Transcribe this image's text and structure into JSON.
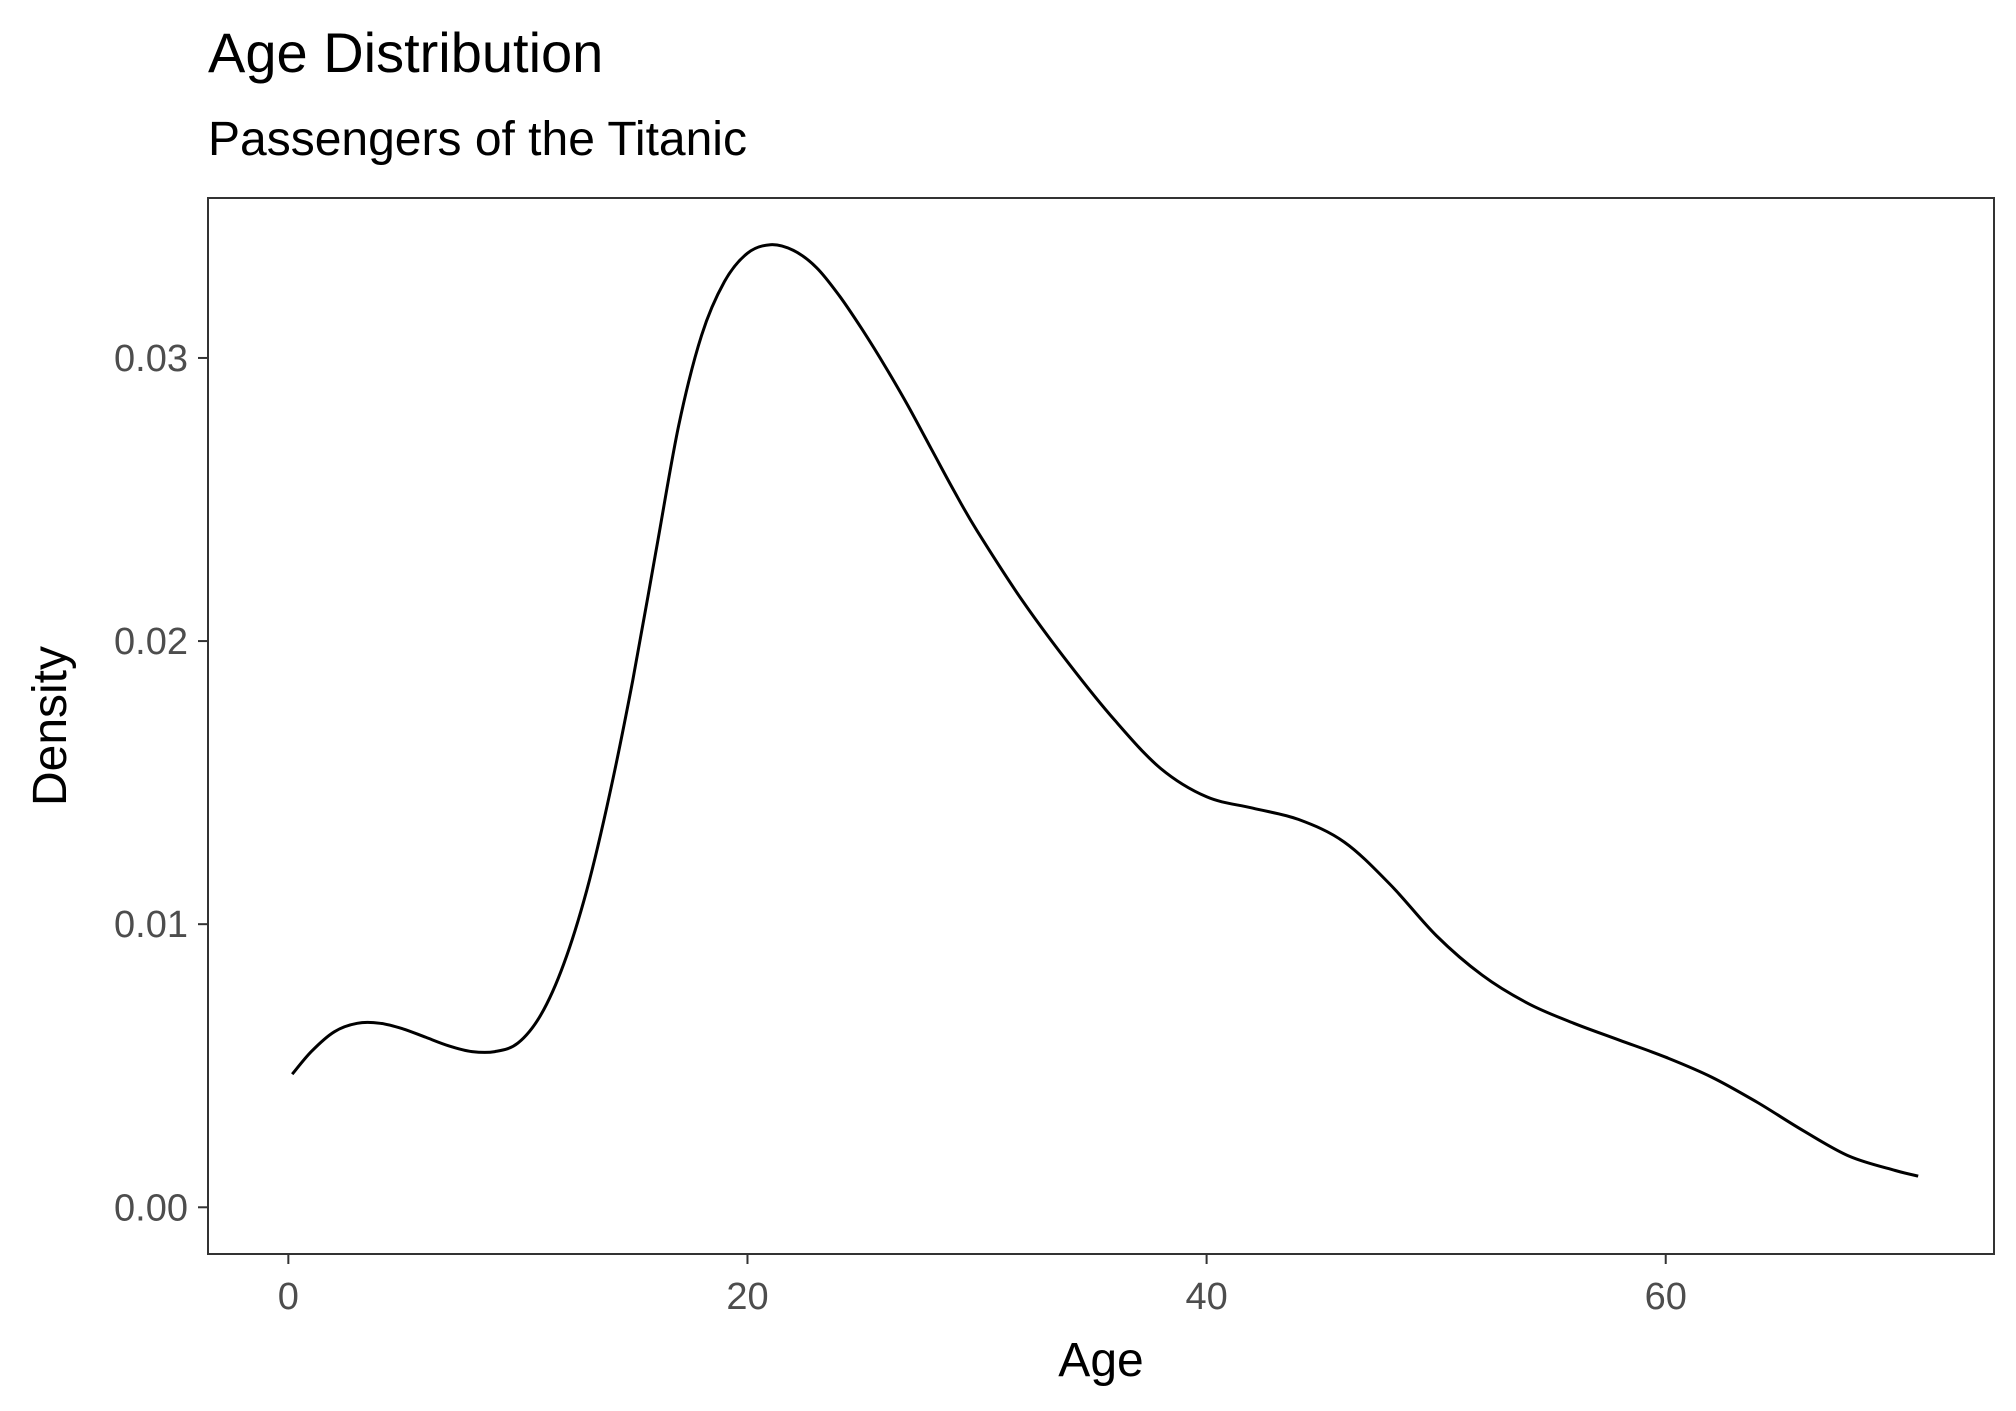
{
  "chart_data": {
    "type": "line",
    "title": "Age Distribution",
    "subtitle": "Passengers of the Titanic",
    "xlabel": "Age",
    "ylabel": "Density",
    "xlim": [
      -3.5,
      74.3
    ],
    "ylim": [
      -0.00165,
      0.03565
    ],
    "x_ticks": [
      0,
      20,
      40,
      60
    ],
    "x_tick_labels": [
      "0",
      "20",
      "40",
      "60"
    ],
    "y_ticks": [
      0.0,
      0.01,
      0.02,
      0.03
    ],
    "y_tick_labels": [
      "0.00",
      "0.01",
      "0.02",
      "0.03"
    ],
    "grid": false,
    "legend": "none",
    "colors": {
      "line": "#000000",
      "panel_border": "#333333",
      "tick_label": "#4d4d4d"
    },
    "series": [
      {
        "x": [
          0.17,
          1,
          2,
          3,
          4,
          5,
          6,
          7,
          8,
          9,
          10,
          11,
          12,
          13,
          14,
          15,
          16,
          17,
          18,
          19,
          20,
          21,
          22,
          23,
          24,
          25,
          26,
          27,
          28,
          29,
          30,
          32,
          34,
          36,
          38,
          40,
          42,
          44,
          46,
          48,
          50,
          52,
          54,
          56,
          58,
          60,
          62,
          64,
          66,
          68,
          70,
          71
        ],
        "y": [
          0.0047,
          0.0055,
          0.0062,
          0.0065,
          0.0065,
          0.0063,
          0.006,
          0.0057,
          0.0055,
          0.0055,
          0.0058,
          0.0068,
          0.0086,
          0.0112,
          0.0146,
          0.0186,
          0.0231,
          0.0276,
          0.0308,
          0.0327,
          0.0337,
          0.034,
          0.0338,
          0.0332,
          0.0322,
          0.031,
          0.0297,
          0.0283,
          0.0268,
          0.0253,
          0.0239,
          0.0214,
          0.0192,
          0.0172,
          0.0155,
          0.0145,
          0.0141,
          0.0137,
          0.0129,
          0.0114,
          0.0096,
          0.0082,
          0.0072,
          0.0065,
          0.0059,
          0.0053,
          0.0046,
          0.0037,
          0.0027,
          0.0018,
          0.0013,
          0.0011
        ]
      }
    ]
  }
}
